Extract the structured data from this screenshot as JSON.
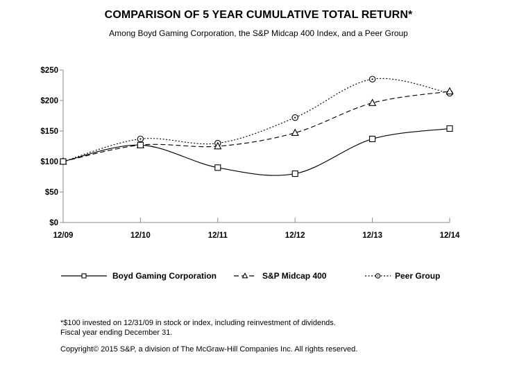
{
  "header": {
    "title": "COMPARISON OF 5 YEAR CUMULATIVE TOTAL RETURN*",
    "subtitle": "Among Boyd Gaming Corporation, the S&P Midcap 400 Index, and a Peer Group"
  },
  "chart_data": {
    "type": "line",
    "title": "COMPARISON OF 5 YEAR CUMULATIVE TOTAL RETURN*",
    "subtitle": "Among Boyd Gaming Corporation, the S&P Midcap 400 Index, and a Peer Group",
    "x_labels": [
      "12/09",
      "12/10",
      "12/11",
      "12/12",
      "12/13",
      "12/14"
    ],
    "ylim": [
      0,
      250
    ],
    "yticks": [
      0,
      50,
      100,
      150,
      200,
      250
    ],
    "ytick_labels": [
      "$0",
      "$50",
      "$100",
      "$150",
      "$200",
      "$250"
    ],
    "grid": false,
    "legend_position": "bottom",
    "series": [
      {
        "name": "Boyd Gaming Corporation",
        "marker": "square",
        "line": "solid",
        "values": [
          100,
          127,
          90,
          80,
          137,
          154
        ]
      },
      {
        "name": "S&P Midcap 400",
        "marker": "triangle",
        "line": "dashed",
        "values": [
          100,
          127,
          125,
          147,
          196,
          215
        ]
      },
      {
        "name": "Peer Group",
        "marker": "circle-dot",
        "line": "dotted",
        "values": [
          100,
          137,
          130,
          172,
          235,
          212
        ]
      }
    ]
  },
  "colors": {
    "series_line": "#000000",
    "axis_line": "#898989",
    "text": "#000000",
    "background": "#ffffff"
  },
  "footnotes": {
    "note1": "*$100 invested on 12/31/09 in stock or index, including reinvestment of dividends.",
    "note2": "Fiscal year ending December 31.",
    "copyright": "Copyright© 2015 S&P, a division of The McGraw-Hill Companies Inc. All rights reserved."
  }
}
